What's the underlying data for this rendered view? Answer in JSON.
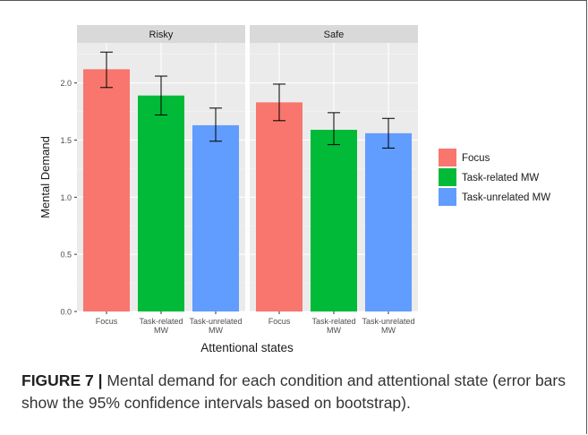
{
  "chart_data": {
    "type": "bar",
    "xlabel": "Attentional states",
    "ylabel": "Mental Demand",
    "ylim": [
      0,
      2.35
    ],
    "yticks": [
      "0.0",
      "0.5",
      "1.0",
      "1.5",
      "2.0"
    ],
    "ytick_values": [
      0,
      0.5,
      1.0,
      1.5,
      2.0
    ],
    "categories": [
      "Focus",
      "Task-related MW",
      "Task-unrelated MW"
    ],
    "category_labels": [
      [
        "Focus"
      ],
      [
        "Task-related",
        "MW"
      ],
      [
        "Task-unrelated",
        "MW"
      ]
    ],
    "grid": true,
    "legend_position": "right",
    "legend": [
      {
        "label": "Focus",
        "color": "#F8766D"
      },
      {
        "label": "Task-related MW",
        "color": "#00BA38"
      },
      {
        "label": "Task-unrelated MW",
        "color": "#619CFF"
      }
    ],
    "panels": [
      {
        "title": "Risky",
        "values": [
          2.12,
          1.89,
          1.63
        ],
        "ci_low": [
          1.96,
          1.72,
          1.49
        ],
        "ci_high": [
          2.27,
          2.06,
          1.78
        ]
      },
      {
        "title": "Safe",
        "values": [
          1.83,
          1.59,
          1.56
        ],
        "ci_low": [
          1.67,
          1.46,
          1.43
        ],
        "ci_high": [
          1.99,
          1.74,
          1.69
        ]
      }
    ]
  },
  "caption": {
    "label": "FIGURE 7 |",
    "text": " Mental demand for each condition and attentional state (error bars show the 95% confidence intervals based on bootstrap)."
  },
  "colors": {
    "panel_bg": "#EBEBEB",
    "strip_bg": "#D9D9D9",
    "grid": "#FFFFFF"
  }
}
